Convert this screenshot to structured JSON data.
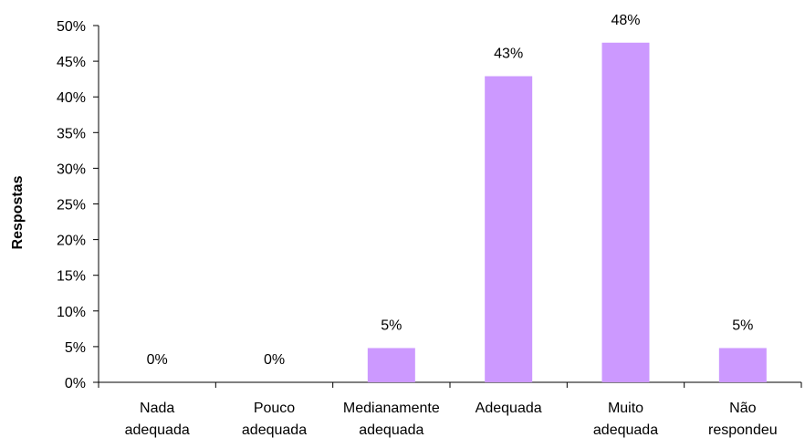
{
  "chart_data": {
    "type": "bar",
    "title": "",
    "xlabel": "",
    "ylabel": "Respostas",
    "categories": [
      [
        "Nada",
        "adequada"
      ],
      [
        "Pouco",
        "adequada"
      ],
      [
        "Medianamente",
        "adequada"
      ],
      [
        "Adequada"
      ],
      [
        "Muito",
        "adequada"
      ],
      [
        "Não",
        "respondeu"
      ]
    ],
    "values": [
      0,
      0,
      4.8,
      42.9,
      47.6,
      4.8
    ],
    "data_labels": [
      "0%",
      "0%",
      "5%",
      "43%",
      "48%",
      "5%"
    ],
    "ylim": [
      0,
      50
    ],
    "ytick_values": [
      0,
      5,
      10,
      15,
      20,
      25,
      30,
      35,
      40,
      45,
      50
    ],
    "ytick_labels": [
      "0%",
      "5%",
      "10%",
      "15%",
      "20%",
      "25%",
      "30%",
      "35%",
      "40%",
      "45%",
      "50%"
    ],
    "grid": false,
    "legend": "none",
    "bar_color": "#cc99ff"
  }
}
